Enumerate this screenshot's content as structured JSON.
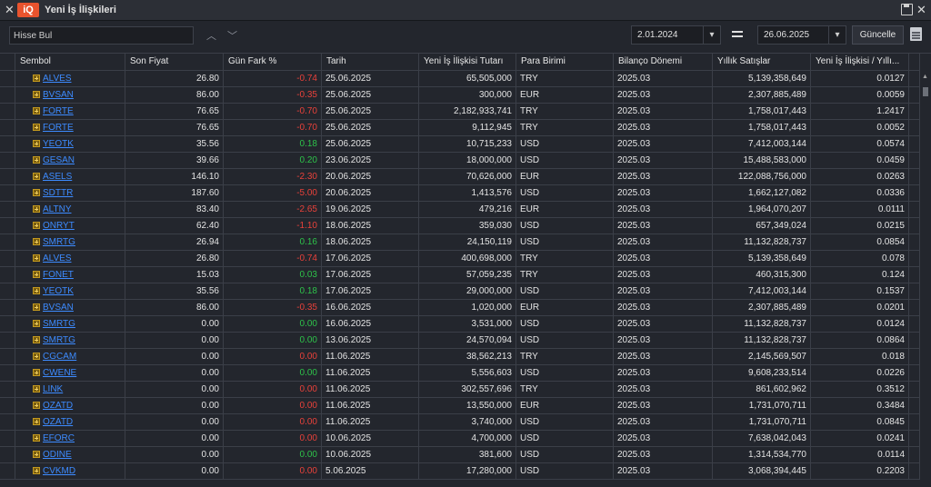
{
  "window": {
    "title": "Yeni İş İlişkileri",
    "logo": "iQ"
  },
  "toolbar": {
    "search_placeholder": "Hisse Bul",
    "start_date": "2.01.2024",
    "end_date": "26.06.2025",
    "update_label": "Güncelle"
  },
  "table": {
    "columns": [
      "Sembol",
      "Son Fiyat",
      "Gün Fark %",
      "Tarih",
      "Yeni İş İlişkisi Tutarı",
      "Para Birimi",
      "Bilanço Dönemi",
      "Yıllık Satışlar",
      "Yeni İş İlişkisi / Yıllı..."
    ],
    "rows": [
      {
        "sym": "ALVES",
        "price": "26.80",
        "chg": "-0.74",
        "date": "25.06.2025",
        "amt": "65,505,000",
        "cur": "TRY",
        "per": "2025.03",
        "sales": "5,139,358,649",
        "ratio": "0.0127"
      },
      {
        "sym": "BVSAN",
        "price": "86.00",
        "chg": "-0.35",
        "date": "25.06.2025",
        "amt": "300,000",
        "cur": "EUR",
        "per": "2025.03",
        "sales": "2,307,885,489",
        "ratio": "0.0059"
      },
      {
        "sym": "FORTE",
        "price": "76.65",
        "chg": "-0.70",
        "date": "25.06.2025",
        "amt": "2,182,933,741",
        "cur": "TRY",
        "per": "2025.03",
        "sales": "1,758,017,443",
        "ratio": "1.2417"
      },
      {
        "sym": "FORTE",
        "price": "76.65",
        "chg": "-0.70",
        "date": "25.06.2025",
        "amt": "9,112,945",
        "cur": "TRY",
        "per": "2025.03",
        "sales": "1,758,017,443",
        "ratio": "0.0052"
      },
      {
        "sym": "YEOTK",
        "price": "35.56",
        "chg": "0.18",
        "date": "25.06.2025",
        "amt": "10,715,233",
        "cur": "USD",
        "per": "2025.03",
        "sales": "7,412,003,144",
        "ratio": "0.0574"
      },
      {
        "sym": "GESAN",
        "price": "39.66",
        "chg": "0.20",
        "date": "23.06.2025",
        "amt": "18,000,000",
        "cur": "USD",
        "per": "2025.03",
        "sales": "15,488,583,000",
        "ratio": "0.0459"
      },
      {
        "sym": "ASELS",
        "price": "146.10",
        "chg": "-2.30",
        "date": "20.06.2025",
        "amt": "70,626,000",
        "cur": "EUR",
        "per": "2025.03",
        "sales": "122,088,756,000",
        "ratio": "0.0263"
      },
      {
        "sym": "SDTTR",
        "price": "187.60",
        "chg": "-5.00",
        "date": "20.06.2025",
        "amt": "1,413,576",
        "cur": "USD",
        "per": "2025.03",
        "sales": "1,662,127,082",
        "ratio": "0.0336"
      },
      {
        "sym": "ALTNY",
        "price": "83.40",
        "chg": "-2.65",
        "date": "19.06.2025",
        "amt": "479,216",
        "cur": "EUR",
        "per": "2025.03",
        "sales": "1,964,070,207",
        "ratio": "0.0111"
      },
      {
        "sym": "ONRYT",
        "price": "62.40",
        "chg": "-1.10",
        "date": "18.06.2025",
        "amt": "359,030",
        "cur": "USD",
        "per": "2025.03",
        "sales": "657,349,024",
        "ratio": "0.0215"
      },
      {
        "sym": "SMRTG",
        "price": "26.94",
        "chg": "0.16",
        "date": "18.06.2025",
        "amt": "24,150,119",
        "cur": "USD",
        "per": "2025.03",
        "sales": "11,132,828,737",
        "ratio": "0.0854"
      },
      {
        "sym": "ALVES",
        "price": "26.80",
        "chg": "-0.74",
        "date": "17.06.2025",
        "amt": "400,698,000",
        "cur": "TRY",
        "per": "2025.03",
        "sales": "5,139,358,649",
        "ratio": "0.078"
      },
      {
        "sym": "FONET",
        "price": "15.03",
        "chg": "0.03",
        "date": "17.06.2025",
        "amt": "57,059,235",
        "cur": "TRY",
        "per": "2025.03",
        "sales": "460,315,300",
        "ratio": "0.124"
      },
      {
        "sym": "YEOTK",
        "price": "35.56",
        "chg": "0.18",
        "date": "17.06.2025",
        "amt": "29,000,000",
        "cur": "USD",
        "per": "2025.03",
        "sales": "7,412,003,144",
        "ratio": "0.1537"
      },
      {
        "sym": "BVSAN",
        "price": "86.00",
        "chg": "-0.35",
        "date": "16.06.2025",
        "amt": "1,020,000",
        "cur": "EUR",
        "per": "2025.03",
        "sales": "2,307,885,489",
        "ratio": "0.0201"
      },
      {
        "sym": "SMRTG",
        "price": "0.00",
        "chg": "0.00",
        "date": "16.06.2025",
        "amt": "3,531,000",
        "cur": "USD",
        "per": "2025.03",
        "sales": "11,132,828,737",
        "ratio": "0.0124"
      },
      {
        "sym": "SMRTG",
        "price": "0.00",
        "chg": "0.00",
        "date": "13.06.2025",
        "amt": "24,570,094",
        "cur": "USD",
        "per": "2025.03",
        "sales": "11,132,828,737",
        "ratio": "0.0864"
      },
      {
        "sym": "CGCAM",
        "price": "0.00",
        "chg": "0.00",
        "date": "11.06.2025",
        "amt": "38,562,213",
        "cur": "TRY",
        "per": "2025.03",
        "sales": "2,145,569,507",
        "ratio": "0.018"
      },
      {
        "sym": "CWENE",
        "price": "0.00",
        "chg": "0.00",
        "date": "11.06.2025",
        "amt": "5,556,603",
        "cur": "USD",
        "per": "2025.03",
        "sales": "9,608,233,514",
        "ratio": "0.0226"
      },
      {
        "sym": "LINK",
        "price": "0.00",
        "chg": "0.00",
        "date": "11.06.2025",
        "amt": "302,557,696",
        "cur": "TRY",
        "per": "2025.03",
        "sales": "861,602,962",
        "ratio": "0.3512"
      },
      {
        "sym": "OZATD",
        "price": "0.00",
        "chg": "0.00",
        "date": "11.06.2025",
        "amt": "13,550,000",
        "cur": "EUR",
        "per": "2025.03",
        "sales": "1,731,070,711",
        "ratio": "0.3484"
      },
      {
        "sym": "OZATD",
        "price": "0.00",
        "chg": "0.00",
        "date": "11.06.2025",
        "amt": "3,740,000",
        "cur": "USD",
        "per": "2025.03",
        "sales": "1,731,070,711",
        "ratio": "0.0845"
      },
      {
        "sym": "EFORC",
        "price": "0.00",
        "chg": "0.00",
        "date": "10.06.2025",
        "amt": "4,700,000",
        "cur": "USD",
        "per": "2025.03",
        "sales": "7,638,042,043",
        "ratio": "0.0241"
      },
      {
        "sym": "ODINE",
        "price": "0.00",
        "chg": "0.00",
        "date": "10.06.2025",
        "amt": "381,600",
        "cur": "USD",
        "per": "2025.03",
        "sales": "1,314,534,770",
        "ratio": "0.0114"
      },
      {
        "sym": "CVKMD",
        "price": "0.00",
        "chg": "0.00",
        "date": "5.06.2025",
        "amt": "17,280,000",
        "cur": "USD",
        "per": "2025.03",
        "sales": "3,068,394,445",
        "ratio": "0.2203"
      }
    ]
  },
  "colors": {
    "negative": "#e8413a",
    "positive": "#2ec24a",
    "link": "#3d8bff"
  }
}
